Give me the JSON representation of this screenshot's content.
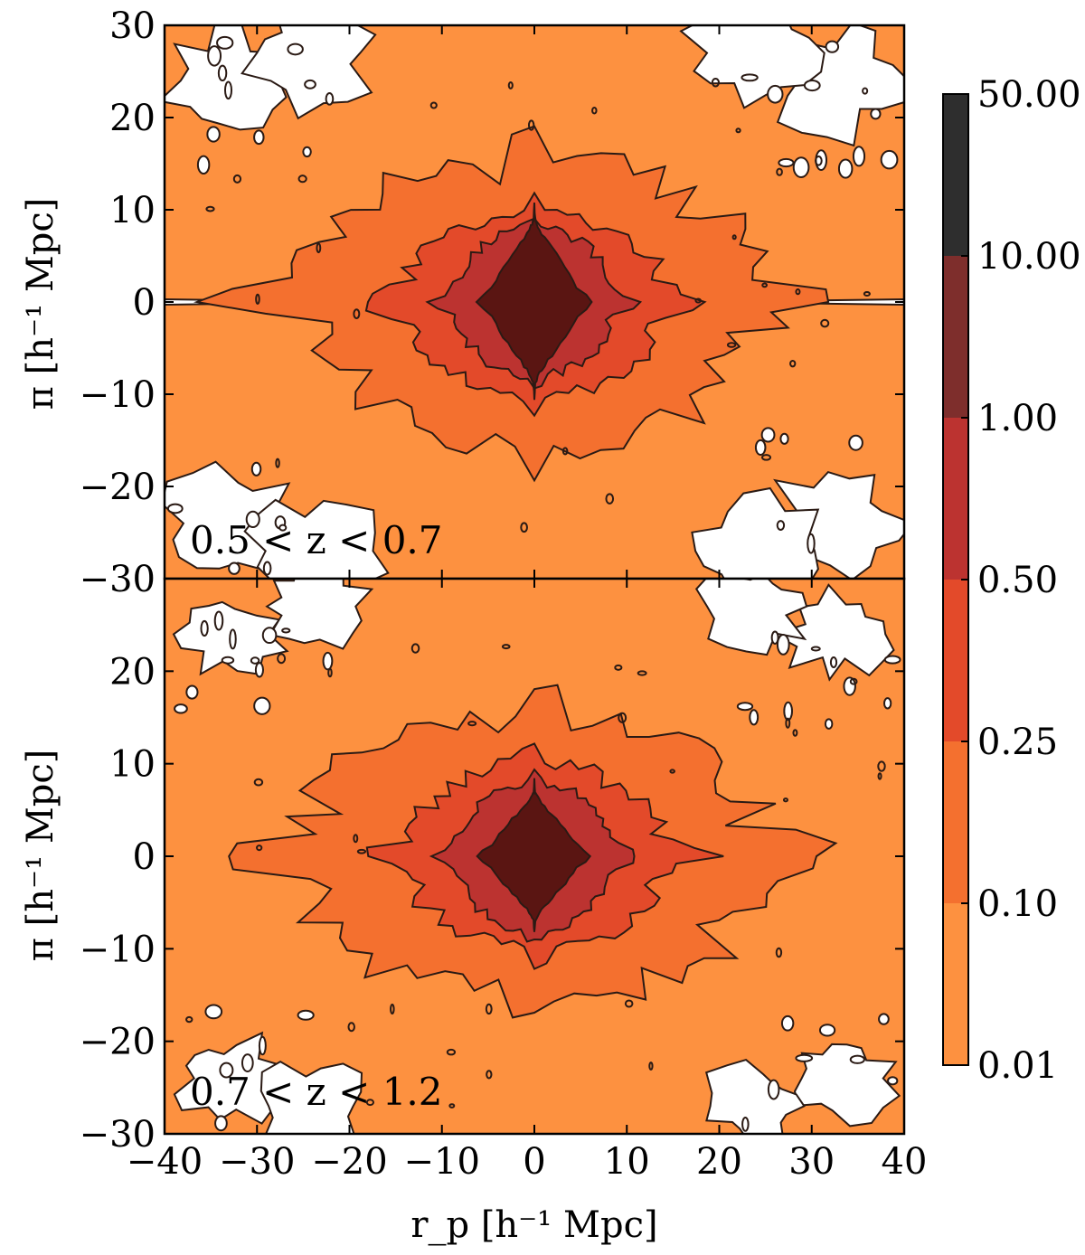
{
  "chart_data": [
    {
      "type": "heatmap",
      "panel": "top",
      "annotation": "0.5 < z < 0.7",
      "xlabel": "",
      "ylabel": "π [h⁻¹ Mpc]",
      "xlim": [
        -40,
        40
      ],
      "ylim": [
        -30,
        30
      ],
      "x_ticks": [],
      "y_ticks": [
        30,
        20,
        10,
        0,
        -10,
        -20,
        -30
      ],
      "contour_levels": [
        0.01,
        0.1,
        0.25,
        0.5,
        1.0,
        10.0,
        50.0
      ],
      "finger_of_god": {
        "peak_pi_extent": 9,
        "peak_rp_extent": 2.5
      },
      "grid": false
    },
    {
      "type": "heatmap",
      "panel": "bottom",
      "annotation": "0.7 < z < 1.2",
      "xlabel": "r_p [h⁻¹ Mpc]",
      "ylabel": "π [h⁻¹ Mpc]",
      "xlim": [
        -40,
        40
      ],
      "ylim": [
        -30,
        30
      ],
      "x_ticks": [
        -40,
        -30,
        -20,
        -10,
        0,
        10,
        20,
        30,
        40
      ],
      "y_ticks": [
        20,
        10,
        0,
        -10,
        -20,
        -30
      ],
      "contour_levels": [
        0.01,
        0.1,
        0.25,
        0.5,
        1.0,
        10.0,
        50.0
      ],
      "finger_of_god": {
        "peak_pi_extent": 7,
        "peak_rp_extent": 2.5
      },
      "grid": false
    }
  ],
  "colorbar": {
    "labels": [
      "50.00",
      "10.00",
      "1.00",
      "0.50",
      "0.25",
      "0.10",
      "0.01"
    ],
    "colors": [
      "#2e2e2e",
      "#7e2e2c",
      "#bc3330",
      "#e34a2a",
      "#f4702f",
      "#fd9140"
    ]
  },
  "labels": {
    "top_annotation": "0.5 < z < 0.7",
    "bottom_annotation": "0.7 < z < 1.2",
    "xlabel": "r_p [h⁻¹ Mpc]",
    "ylabel_top": "π [h⁻¹ Mpc]",
    "ylabel_bottom": "π [h⁻¹ Mpc]"
  }
}
